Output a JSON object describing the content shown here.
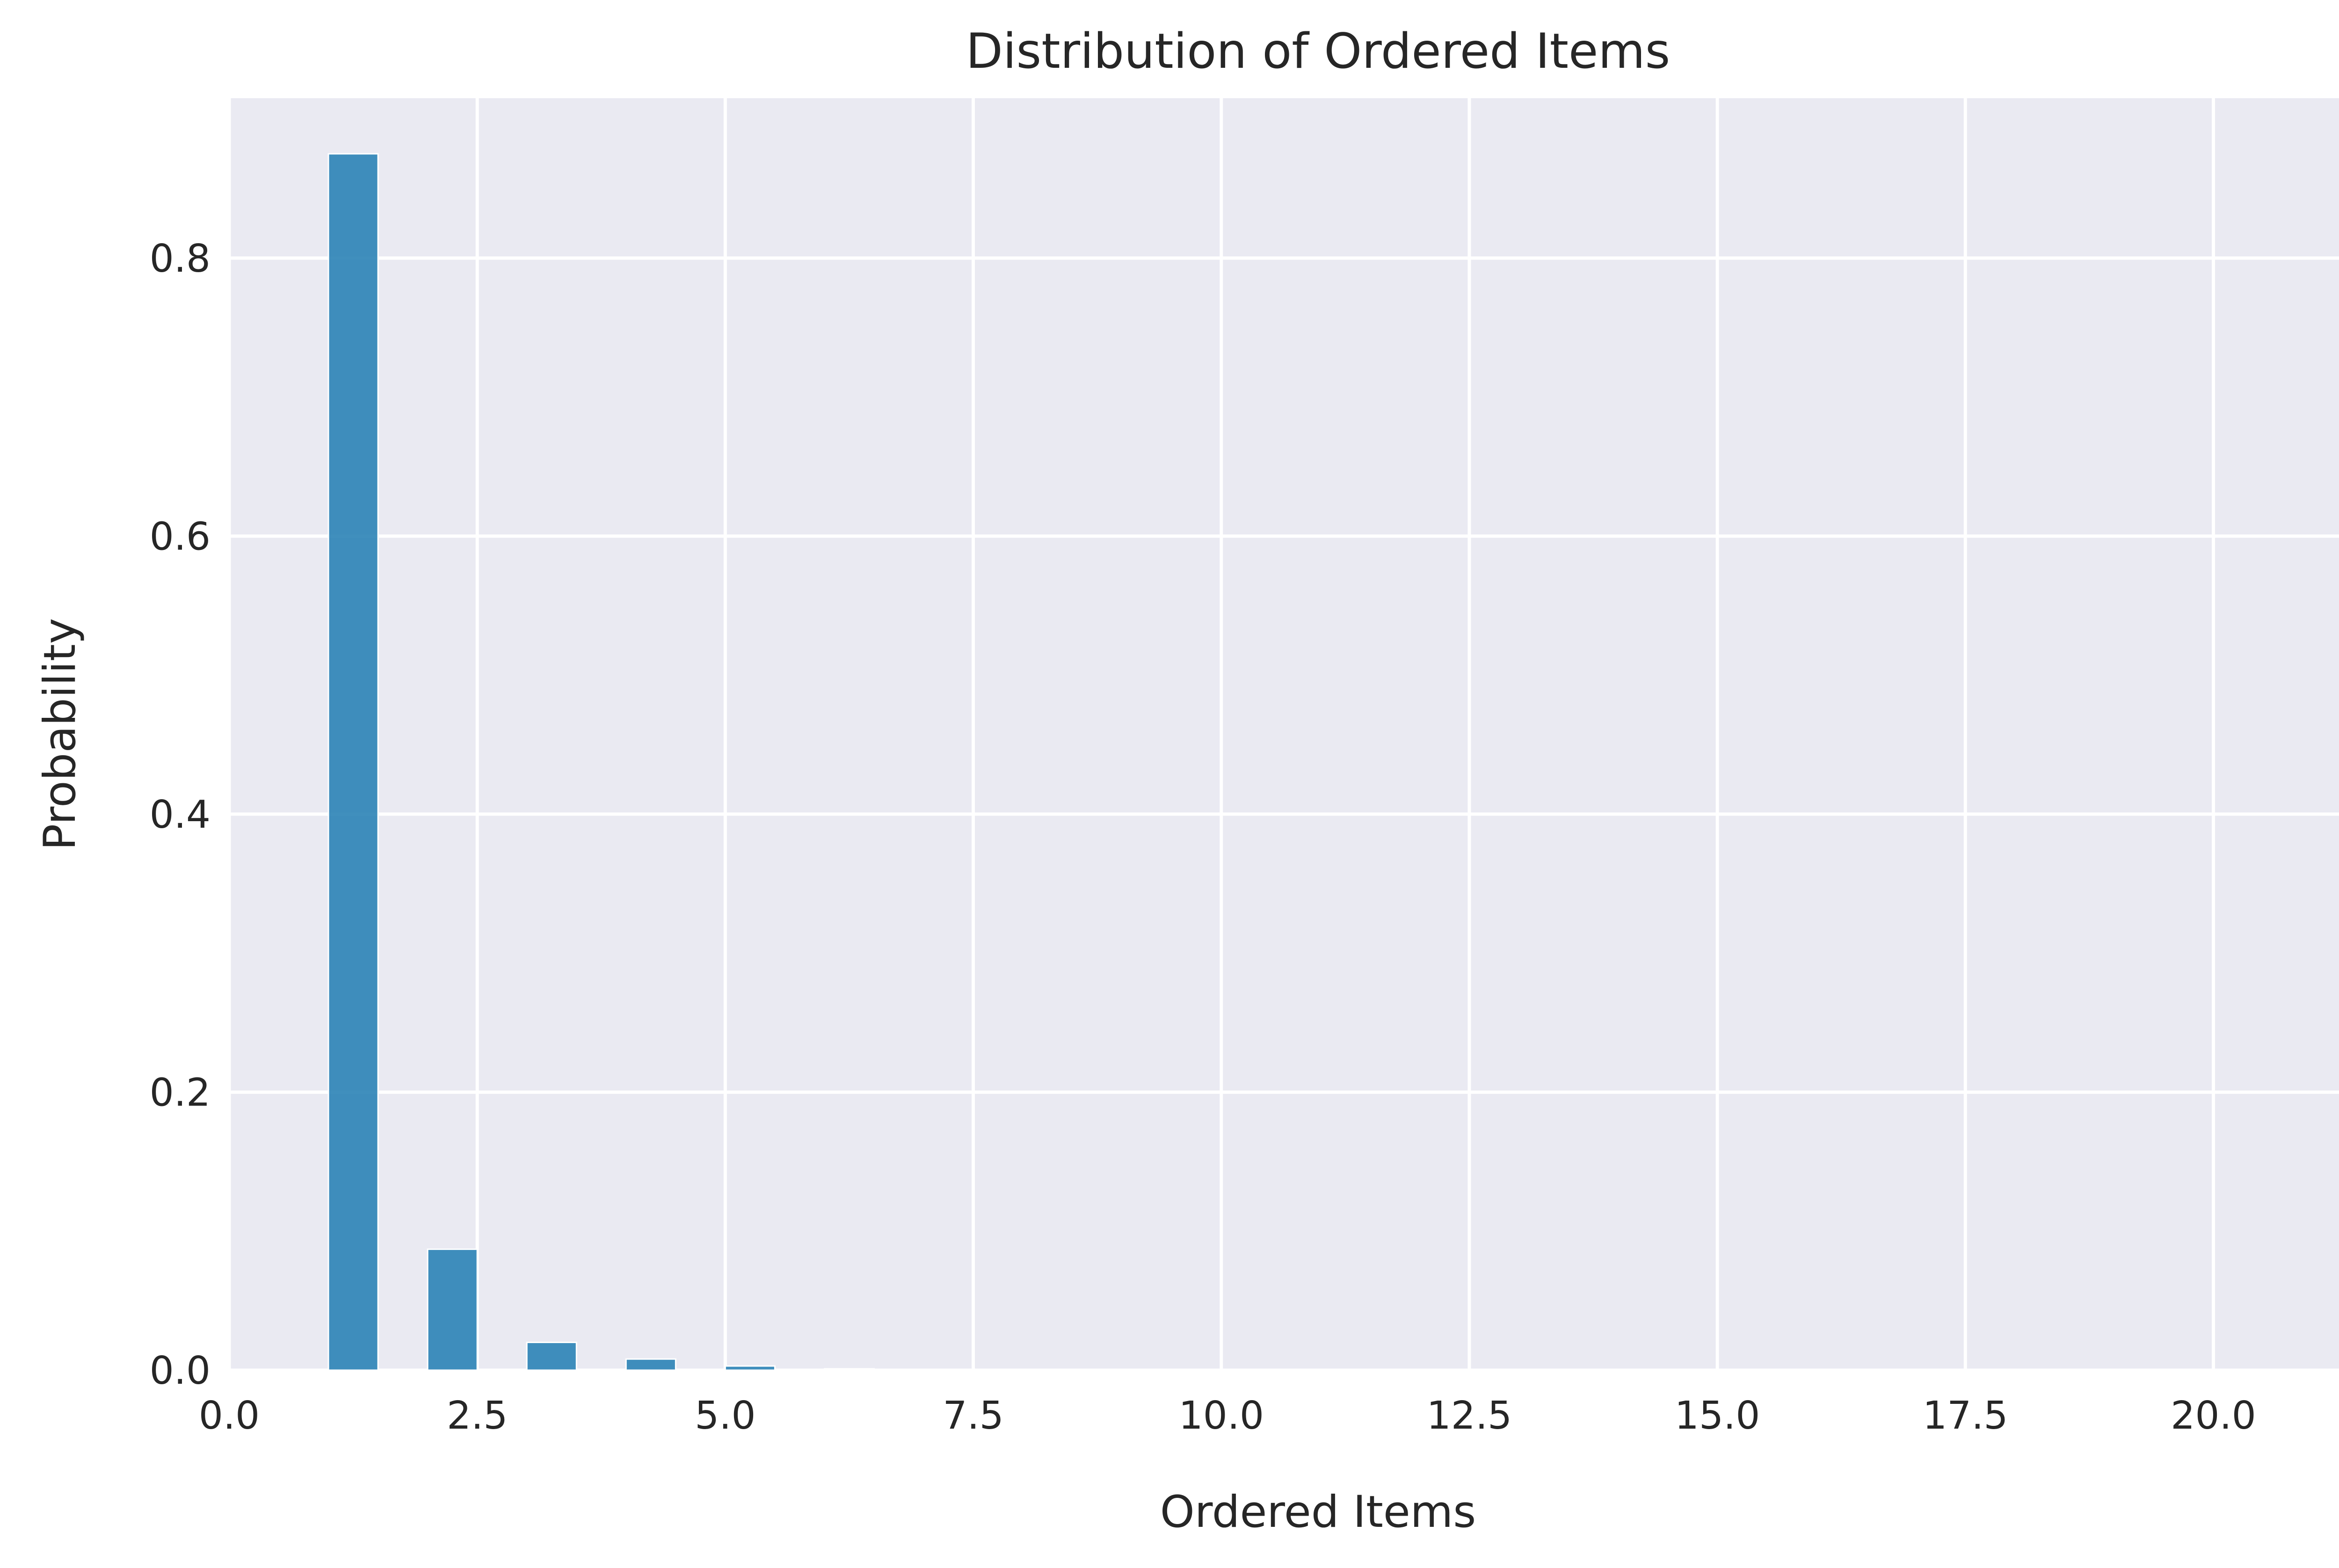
{
  "chart_data": {
    "type": "bar",
    "title": "Distribution of Ordered Items",
    "xlabel": "Ordered Items",
    "ylabel": "Probability",
    "xlim": [
      0,
      21.95
    ],
    "ylim": [
      0,
      0.915
    ],
    "x_ticks": [
      0.0,
      2.5,
      5.0,
      7.5,
      10.0,
      12.5,
      15.0,
      17.5,
      20.0
    ],
    "x_tick_labels": [
      "0.0",
      "2.5",
      "5.0",
      "7.5",
      "10.0",
      "12.5",
      "15.0",
      "17.5",
      "20.0"
    ],
    "y_ticks": [
      0.0,
      0.2,
      0.4,
      0.6,
      0.8
    ],
    "y_tick_labels": [
      "0.0",
      "0.2",
      "0.4",
      "0.6",
      "0.8"
    ],
    "grid": true,
    "bar_width": 0.5,
    "bars": [
      {
        "x": 1,
        "value": 0.875
      },
      {
        "x": 2,
        "value": 0.087
      },
      {
        "x": 3,
        "value": 0.02
      },
      {
        "x": 4,
        "value": 0.008
      },
      {
        "x": 5,
        "value": 0.003
      },
      {
        "x": 6,
        "value": 0.001
      },
      {
        "x": 7,
        "value": 0.0004
      },
      {
        "x": 8,
        "value": 0.0002
      },
      {
        "x": 9,
        "value": 0.0001
      },
      {
        "x": 10,
        "value": 0.0001
      }
    ],
    "colors": {
      "bar": "#2b83b6",
      "plot_background": "#eaeaf2",
      "grid": "#ffffff"
    }
  }
}
